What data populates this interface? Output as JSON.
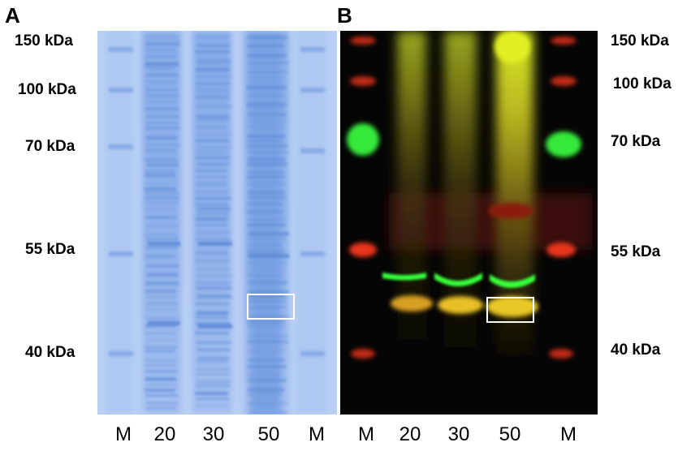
{
  "panel_a": {
    "label": "A",
    "markers": [
      "150 kDa",
      "100 kDa",
      "70 kDa",
      "55 kDa",
      "40 kDa"
    ],
    "lanes": [
      "M",
      "20",
      "30",
      "50",
      "M"
    ]
  },
  "panel_b": {
    "label": "B",
    "markers": [
      "150 kDa",
      "100 kDa",
      "70 kDa",
      "55 kDa",
      "40 kDa"
    ],
    "lanes": [
      "M",
      "20",
      "30",
      "50",
      "M"
    ]
  },
  "colors": {
    "coomassie_bg": "#b8d0f4",
    "coomassie_band": "#6e97df",
    "western_bg": "#050505",
    "western_red": "#e8341c",
    "western_green": "#36e83a",
    "western_yellow": "#e3d420",
    "highlight_box": "#ffffff"
  }
}
